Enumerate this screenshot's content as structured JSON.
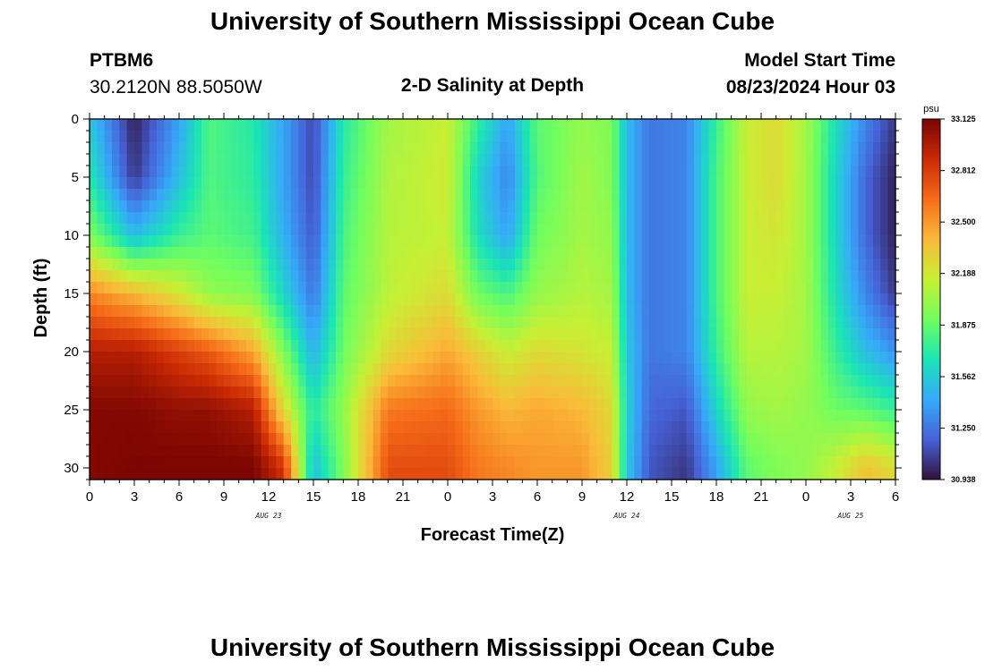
{
  "header": {
    "title": "University of Southern Mississippi Ocean Cube",
    "station": "PTBM6",
    "coords": "30.2120N  88.5050W",
    "subtitle": "2-D Salinity at Depth",
    "model_start_label": "Model Start Time",
    "model_start_value": "08/23/2024 Hour 03"
  },
  "footer": {
    "title": "University of Southern Mississippi Ocean Cube"
  },
  "colors": {
    "colormap": [
      "#30123b",
      "#4662d7",
      "#36aaf9",
      "#1ae4b6",
      "#72fe5e",
      "#c8ef34",
      "#faba39",
      "#f66b19",
      "#ca2a04",
      "#7a0403"
    ]
  },
  "chart_data": {
    "type": "heatmap",
    "title": "2-D Salinity at Depth",
    "xlabel": "Forecast Time(Z)",
    "ylabel": "Depth (ft)",
    "x_ticks": [
      "0",
      "3",
      "6",
      "9",
      "12",
      "15",
      "18",
      "21",
      "0",
      "3",
      "6",
      "9",
      "12",
      "15",
      "18",
      "21",
      "0",
      "3",
      "6"
    ],
    "x_range_hours": [
      0,
      54
    ],
    "date_labels": [
      {
        "hour": 12,
        "text": "AUG 23"
      },
      {
        "hour": 36,
        "text": "AUG 24"
      },
      {
        "hour": 51,
        "text": "AUG 25"
      }
    ],
    "y_ticks": [
      "0",
      "5",
      "10",
      "15",
      "20",
      "25",
      "30"
    ],
    "y_range_ft": [
      0,
      31
    ],
    "colorbar": {
      "unit": "psu",
      "min": 30.938,
      "max": 33.125,
      "labels": [
        "33.125",
        "32.812",
        "32.500",
        "32.188",
        "31.875",
        "31.562",
        "31.250",
        "30.938"
      ]
    },
    "depths_ft": [
      0,
      5,
      10,
      15,
      20,
      25,
      30
    ],
    "profiles": [
      {
        "hour": 0,
        "values": [
          31.55,
          31.7,
          31.95,
          32.55,
          32.95,
          33.1,
          33.1
        ]
      },
      {
        "hour": 3,
        "values": [
          30.98,
          31.05,
          31.5,
          32.4,
          32.95,
          33.1,
          33.12
        ]
      },
      {
        "hour": 6,
        "values": [
          31.4,
          31.5,
          31.75,
          32.2,
          32.8,
          33.05,
          33.12
        ]
      },
      {
        "hour": 8,
        "values": [
          31.82,
          31.82,
          31.85,
          32.0,
          32.7,
          33.05,
          33.12
        ]
      },
      {
        "hour": 11,
        "values": [
          31.7,
          31.72,
          31.78,
          31.95,
          32.45,
          32.95,
          33.12
        ]
      },
      {
        "hour": 13,
        "values": [
          31.4,
          31.4,
          31.45,
          31.6,
          31.95,
          32.25,
          32.85
        ]
      },
      {
        "hour": 15,
        "values": [
          31.1,
          31.1,
          31.15,
          31.25,
          31.45,
          31.7,
          31.5
        ]
      },
      {
        "hour": 17,
        "values": [
          31.7,
          31.75,
          31.8,
          31.85,
          31.9,
          32.0,
          31.95
        ]
      },
      {
        "hour": 20,
        "values": [
          32.05,
          32.08,
          32.1,
          32.12,
          32.25,
          32.6,
          32.75
        ]
      },
      {
        "hour": 24,
        "values": [
          32.15,
          32.18,
          32.15,
          32.25,
          32.45,
          32.65,
          32.75
        ]
      },
      {
        "hour": 26,
        "values": [
          31.75,
          31.6,
          31.65,
          31.9,
          32.3,
          32.5,
          32.6
        ]
      },
      {
        "hour": 28,
        "values": [
          31.4,
          31.3,
          31.4,
          31.8,
          32.15,
          32.4,
          32.55
        ]
      },
      {
        "hour": 30,
        "values": [
          31.85,
          31.82,
          31.9,
          32.0,
          32.25,
          32.45,
          32.5
        ]
      },
      {
        "hour": 33,
        "values": [
          32.0,
          32.05,
          32.05,
          32.1,
          32.2,
          32.4,
          32.5
        ]
      },
      {
        "hour": 35,
        "values": [
          31.95,
          31.95,
          32.0,
          32.05,
          32.15,
          32.25,
          32.3
        ]
      },
      {
        "hour": 36,
        "values": [
          31.5,
          31.5,
          31.5,
          31.5,
          31.55,
          31.6,
          31.55
        ]
      },
      {
        "hour": 37.5,
        "values": [
          31.25,
          31.25,
          31.25,
          31.25,
          31.25,
          31.2,
          31.15
        ]
      },
      {
        "hour": 40,
        "values": [
          31.3,
          31.3,
          31.3,
          31.3,
          31.3,
          31.15,
          31.05
        ]
      },
      {
        "hour": 42,
        "values": [
          31.75,
          31.8,
          31.8,
          31.8,
          31.75,
          31.6,
          31.4
        ]
      },
      {
        "hour": 44,
        "values": [
          32.15,
          32.15,
          32.15,
          32.15,
          32.1,
          32.0,
          31.85
        ]
      },
      {
        "hour": 46,
        "values": [
          32.25,
          32.25,
          32.2,
          32.15,
          32.1,
          32.05,
          31.95
        ]
      },
      {
        "hour": 48,
        "values": [
          32.05,
          32.05,
          32.05,
          32.05,
          32.05,
          32.0,
          32.0
        ]
      },
      {
        "hour": 50,
        "values": [
          31.65,
          31.6,
          31.6,
          31.65,
          31.75,
          31.9,
          32.15
        ]
      },
      {
        "hour": 52,
        "values": [
          31.3,
          31.2,
          31.2,
          31.3,
          31.5,
          31.85,
          32.35
        ]
      },
      {
        "hour": 54,
        "values": [
          31.05,
          30.98,
          30.98,
          31.05,
          31.35,
          31.75,
          32.25
        ]
      }
    ]
  }
}
